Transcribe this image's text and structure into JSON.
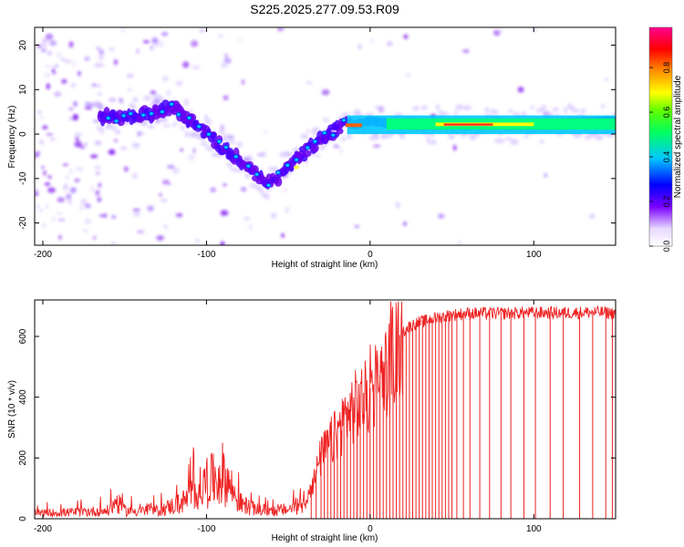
{
  "title": "S225.2025.277.09.53.R09",
  "chart_data": [
    {
      "type": "heatmap",
      "title": "S225.2025.277.09.53.R09",
      "xlabel": "Height of straight line (km)",
      "ylabel": "Frequency (Hz)",
      "xlim": [
        -205,
        150
      ],
      "ylim": [
        -25,
        24
      ],
      "xticks": [
        -200,
        -100,
        0,
        100
      ],
      "yticks": [
        -20,
        -10,
        0,
        10,
        20
      ],
      "colorbar": {
        "label": "Normalized spectral amplitude",
        "range": [
          0,
          0.98
        ],
        "ticks": [
          0.0,
          0.2,
          0.4,
          0.6,
          0.8
        ],
        "colormap": [
          "#ffffff",
          "#d8c0ff",
          "#7a00ff",
          "#0000ff",
          "#00c8ff",
          "#00ff60",
          "#ffff00",
          "#ff8000",
          "#ff0000",
          "#ff0090"
        ]
      },
      "ridge": {
        "x": [
          -160,
          -150,
          -140,
          -130,
          -120,
          -110,
          -100,
          -90,
          -80,
          -70,
          -60,
          -50,
          -40,
          -30,
          -20,
          -15,
          -10,
          0,
          10,
          20,
          40,
          60,
          80,
          100,
          120,
          150
        ],
        "frequency": [
          4,
          3.5,
          4.5,
          5,
          6,
          3,
          0,
          -3,
          -6,
          -9,
          -11,
          -7,
          -4,
          -1,
          1,
          3,
          2,
          3,
          2.5,
          2,
          2,
          2,
          2,
          2,
          2.5,
          3
        ]
      }
    },
    {
      "type": "line",
      "xlabel": "Height of straight line (km)",
      "ylabel": "SNR (10 * v/v)",
      "xlim": [
        -205,
        150
      ],
      "ylim": [
        0,
        720
      ],
      "xticks": [
        -200,
        -100,
        0,
        100
      ],
      "yticks": [
        0,
        200,
        400,
        600
      ],
      "series": [
        {
          "name": "SNR",
          "color": "#ee2222",
          "x": [
            -205,
            -180,
            -160,
            -155,
            -150,
            -130,
            -115,
            -105,
            -95,
            -90,
            -85,
            -80,
            -70,
            -60,
            -50,
            -40,
            -35,
            -30,
            -25,
            -20,
            -15,
            -10,
            -5,
            0,
            5,
            10,
            15,
            20,
            25,
            30,
            40,
            50,
            60,
            80,
            100,
            120,
            140,
            150
          ],
          "y": [
            20,
            25,
            30,
            65,
            30,
            30,
            60,
            110,
            150,
            170,
            120,
            60,
            35,
            30,
            35,
            60,
            120,
            220,
            260,
            300,
            360,
            390,
            410,
            430,
            460,
            520,
            580,
            620,
            640,
            650,
            665,
            675,
            680,
            680,
            682,
            682,
            684,
            680
          ]
        }
      ],
      "dropouts_x": [
        -36,
        -33,
        -30,
        -28,
        -26,
        -24,
        -22,
        -20,
        -18,
        -16,
        -14,
        -12,
        -10,
        -8,
        -6,
        -4,
        -2,
        0,
        2,
        4,
        6,
        8,
        10,
        12,
        14,
        16,
        18,
        20,
        22,
        24,
        26,
        28,
        30,
        32,
        34,
        36,
        38,
        40,
        42,
        44,
        46,
        48,
        50,
        53,
        57,
        61,
        67,
        73,
        80,
        86,
        94,
        101,
        110,
        118,
        128,
        136,
        144,
        148
      ]
    }
  ]
}
